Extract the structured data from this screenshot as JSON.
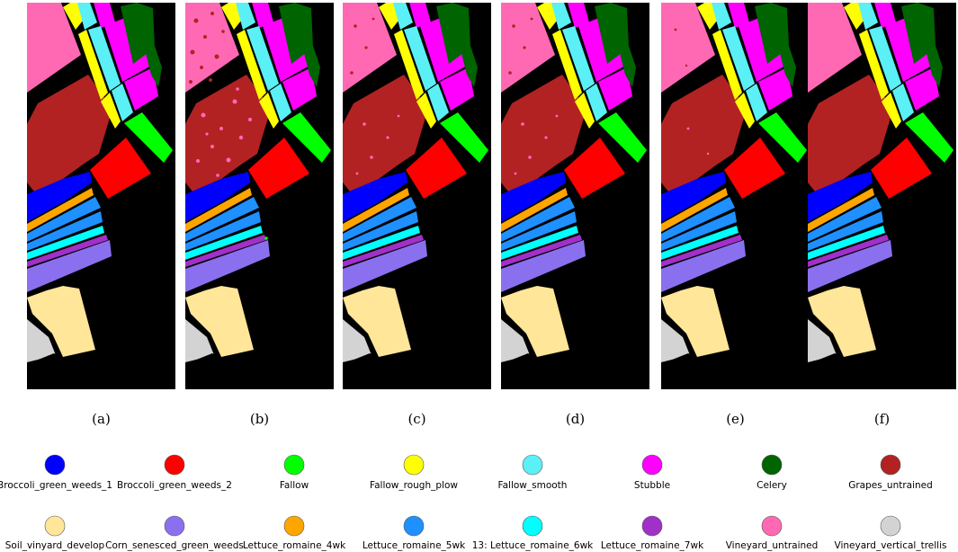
{
  "panels": [
    {
      "label": "(a)",
      "type": "ground_truth"
    },
    {
      "label": "(b)",
      "type": "classification_map",
      "noise": "heavy"
    },
    {
      "label": "(c)",
      "type": "classification_map",
      "noise": "moderate"
    },
    {
      "label": "(d)",
      "type": "classification_map",
      "noise": "moderate"
    },
    {
      "label": "(e)",
      "type": "classification_map",
      "noise": "light"
    },
    {
      "label": "(f)",
      "type": "classification_map",
      "noise": "none"
    }
  ],
  "legend": [
    {
      "label": "Broccoli_green_weeds_1",
      "color": "#0000ff"
    },
    {
      "label": "Broccoli_green_weeds_2",
      "color": "#ff0000"
    },
    {
      "label": "Fallow",
      "color": "#00ff00"
    },
    {
      "label": "Fallow_rough_plow",
      "color": "#ffff00"
    },
    {
      "label": "Fallow_smooth",
      "color": "#5af0f5"
    },
    {
      "label": "Stubble",
      "color": "#ff00ff"
    },
    {
      "label": "Celery",
      "color": "#006400"
    },
    {
      "label": "Grapes_untrained",
      "color": "#b22222"
    },
    {
      "label": "Soil_vinyard_develop",
      "color": "#ffe699"
    },
    {
      "label": "Corn_senesced_green_weeds",
      "color": "#8a70ee"
    },
    {
      "label": "Lettuce_romaine_4wk",
      "color": "#ffa500"
    },
    {
      "label": "Lettuce_romaine_5wk",
      "color": "#1e90ff"
    },
    {
      "label": "13: Lettuce_romaine_6wk",
      "color": "#00ffff"
    },
    {
      "label": "Lettuce_romaine_7wk",
      "color": "#a030c8"
    },
    {
      "label": "Vineyard_untrained",
      "color": "#ff69b4"
    },
    {
      "label": "Vineyard_vertical_trellis",
      "color": "#d3d3d3"
    }
  ],
  "background_color": "#000000"
}
